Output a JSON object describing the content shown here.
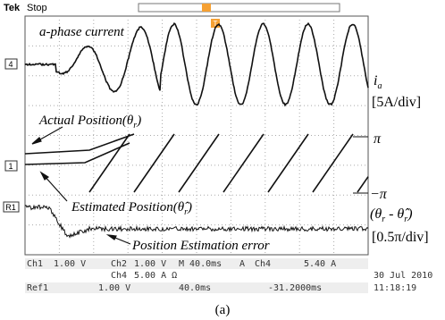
{
  "header": {
    "brand": "Tek",
    "state": "Stop",
    "trigger": "T"
  },
  "traces": {
    "ch4": {
      "marker": "4",
      "title": "a-phase current",
      "unit_symbol": {
        "main": "i",
        "sub": "a"
      },
      "scale": "[5A/div]"
    },
    "ch1": {
      "marker": "1",
      "actual": [
        "Actual Position(θ",
        "r",
        ")"
      ],
      "estimated": [
        "Estimated Position(θ̂",
        "r",
        ")"
      ],
      "upper": "π",
      "lower": "−π"
    },
    "ref1": {
      "marker": "R1",
      "symbol": [
        "(θ",
        "r",
        " - θ̂",
        "r",
        ")"
      ],
      "scale": "[0.5π/div]",
      "label": "Position Estimation error"
    }
  },
  "status": {
    "row1": [
      "Ch1",
      "1.00 V",
      "Ch2",
      "1.00 V",
      "M 40.0ms",
      "A",
      "Ch4",
      "5.40 A"
    ],
    "row2": [
      "Ch4",
      "5.00 A Ω"
    ],
    "row3": [
      "Ref1",
      "1.00 V",
      "40.0ms",
      "-31.2000ms"
    ],
    "date": "30 Jul  2010",
    "time": "11:18:19"
  },
  "caption": "(a)"
}
